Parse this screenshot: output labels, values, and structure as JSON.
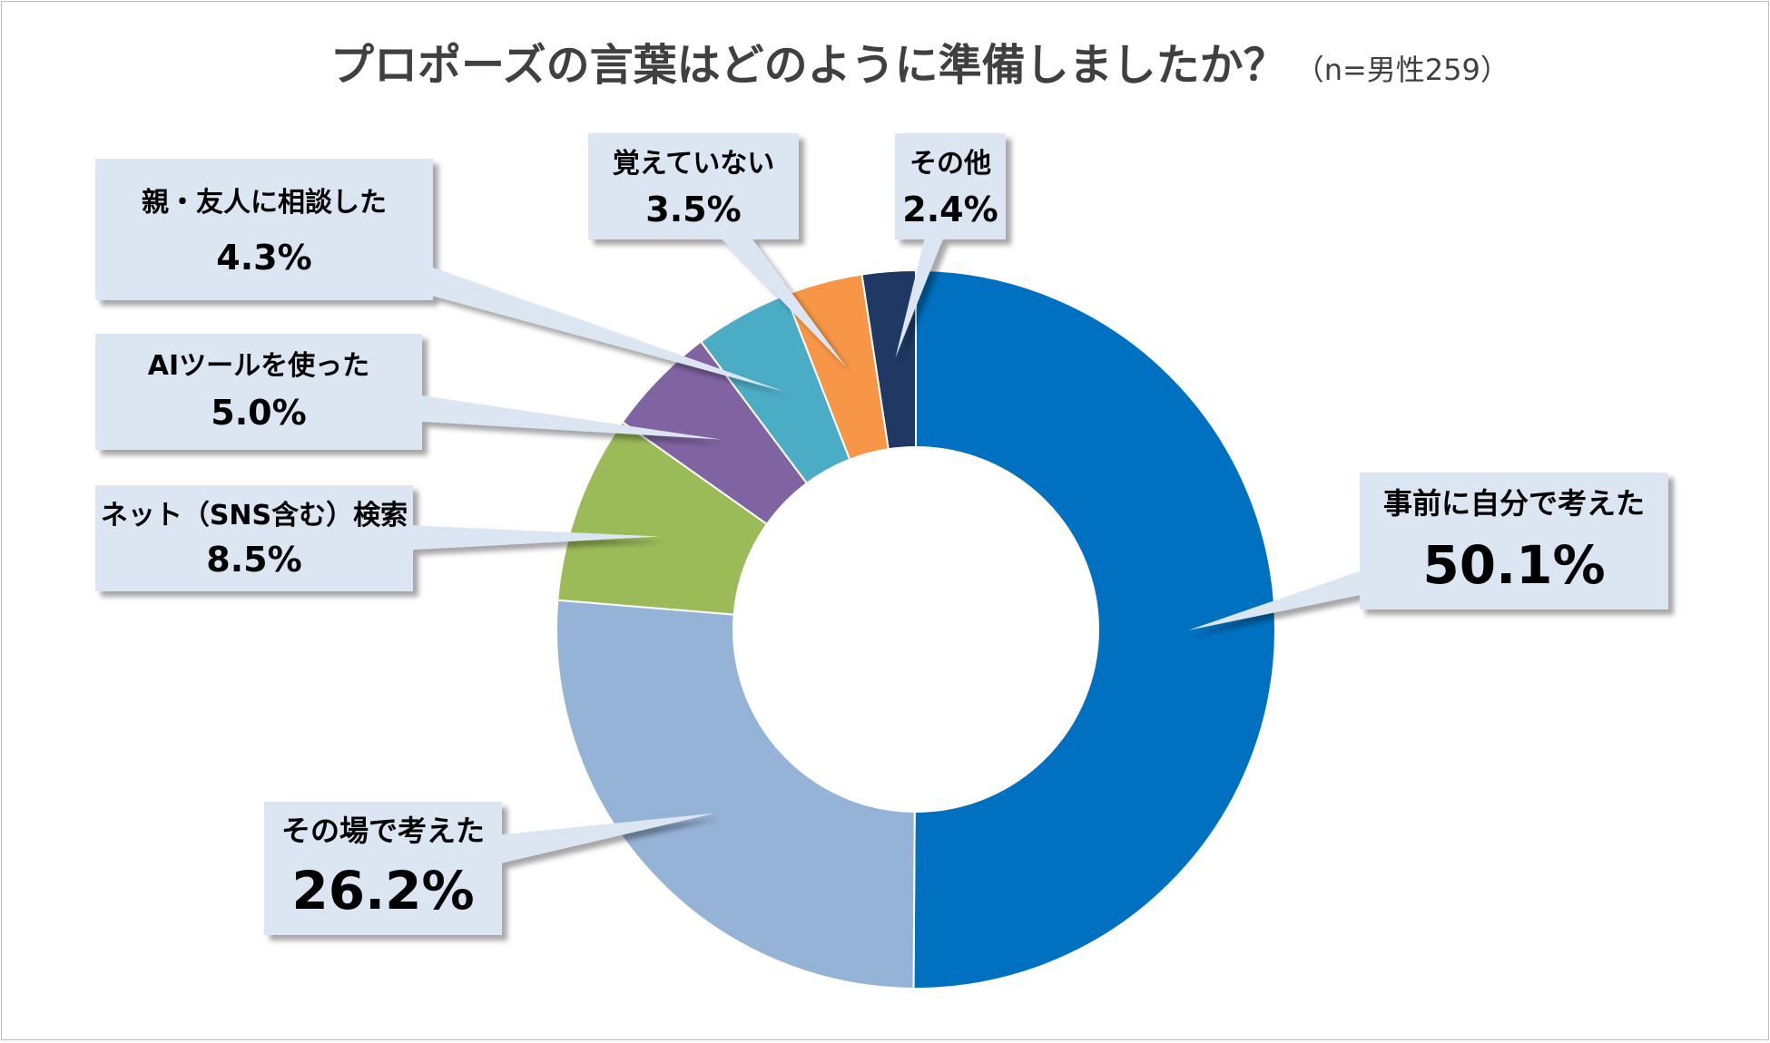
{
  "chart_data": {
    "type": "donut",
    "title": "プロポーズの言葉はどのように準備しましたか？",
    "subtitle": "（n=男性259）",
    "slices": [
      {
        "label": "事前に自分で考えた",
        "value": 50.1,
        "display": "50.1%",
        "color": "#0070C0"
      },
      {
        "label": "その場で考えた",
        "value": 26.2,
        "display": "26.2%",
        "color": "#95B3D7"
      },
      {
        "label": "ネット（SNS含む）検索",
        "value": 8.5,
        "display": "8.5%",
        "color": "#9BBB59"
      },
      {
        "label": "AIツールを使った",
        "value": 5.0,
        "display": "5.0%",
        "color": "#8064A2"
      },
      {
        "label": "親・友人に相談した",
        "value": 4.3,
        "display": "4.3%",
        "color": "#4BACC6"
      },
      {
        "label": "覚えていない",
        "value": 3.5,
        "display": "3.5%",
        "color": "#F79646"
      },
      {
        "label": "その他",
        "value": 2.4,
        "display": "2.4%",
        "color": "#1F3864"
      }
    ]
  },
  "colors": {
    "callout_fill": "#DCE6F2",
    "callout_shadow": "#7f7f7f",
    "title": "#404040"
  }
}
